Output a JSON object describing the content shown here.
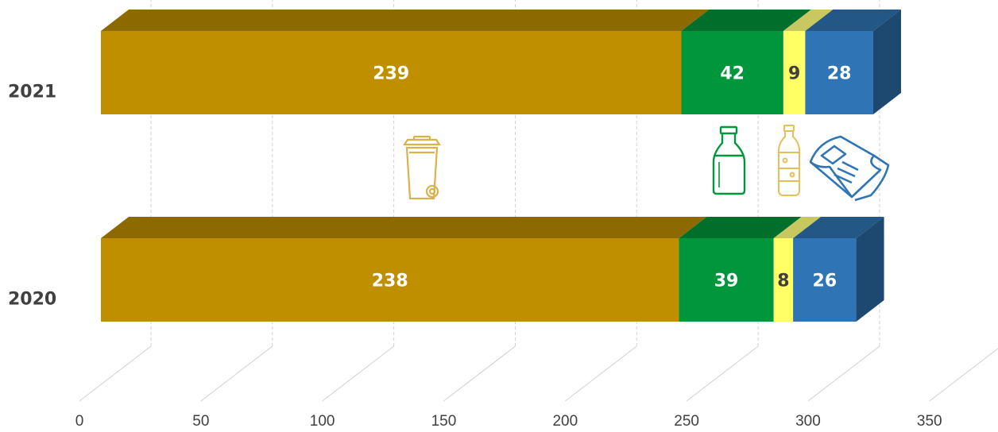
{
  "colors": {
    "general_waste": "#bf8f00",
    "glass": "#00963c",
    "plastic": "#ffff66",
    "paper": "#2f75b5",
    "label_light": "#ffffff",
    "label_dark": "#404040",
    "grid": "#d0d0d0"
  },
  "chart_data": {
    "type": "bar",
    "orientation": "horizontal",
    "stacked": true,
    "three_d": true,
    "categories": [
      "2021",
      "2020"
    ],
    "series": [
      {
        "key": "general_waste",
        "values": [
          239,
          238
        ],
        "icon": "wheelie-bin-icon"
      },
      {
        "key": "glass",
        "values": [
          42,
          39
        ],
        "icon": "glass-bottle-icon"
      },
      {
        "key": "plastic",
        "values": [
          9,
          8
        ],
        "icon": "plastic-bottle-icon"
      },
      {
        "key": "paper",
        "values": [
          28,
          26
        ],
        "icon": "newspaper-icon"
      }
    ],
    "xlim": [
      0,
      350
    ],
    "x_ticks": [
      "0",
      "50",
      "100",
      "150",
      "200",
      "250",
      "300",
      "350"
    ],
    "grid": true,
    "legend": "none"
  }
}
